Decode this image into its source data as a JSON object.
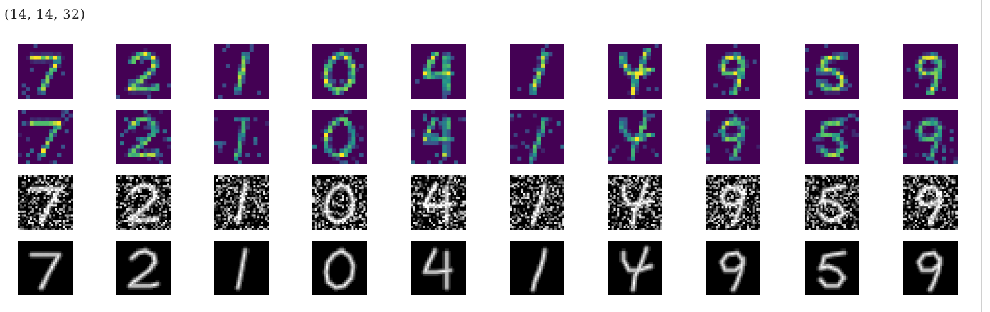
{
  "output": {
    "shape_text": "(14, 14, 32)"
  },
  "figure": {
    "rows": [
      {
        "name": "feature-map-row-a",
        "colormap": "viridis",
        "digits": [
          "7",
          "2",
          "1",
          "0",
          "4",
          "1",
          "4",
          "9",
          "5",
          "9"
        ]
      },
      {
        "name": "feature-map-row-b",
        "colormap": "viridis",
        "digits": [
          "7",
          "2",
          "1",
          "0",
          "4",
          "1",
          "4",
          "9",
          "5",
          "9"
        ]
      },
      {
        "name": "noisy-input-row",
        "colormap": "gray",
        "digits": [
          "7",
          "2",
          "1",
          "0",
          "4",
          "1",
          "4",
          "9",
          "5",
          "9"
        ]
      },
      {
        "name": "clean-input-row",
        "colormap": "gray",
        "digits": [
          "7",
          "2",
          "1",
          "0",
          "4",
          "1",
          "4",
          "9",
          "5",
          "9"
        ]
      }
    ]
  }
}
